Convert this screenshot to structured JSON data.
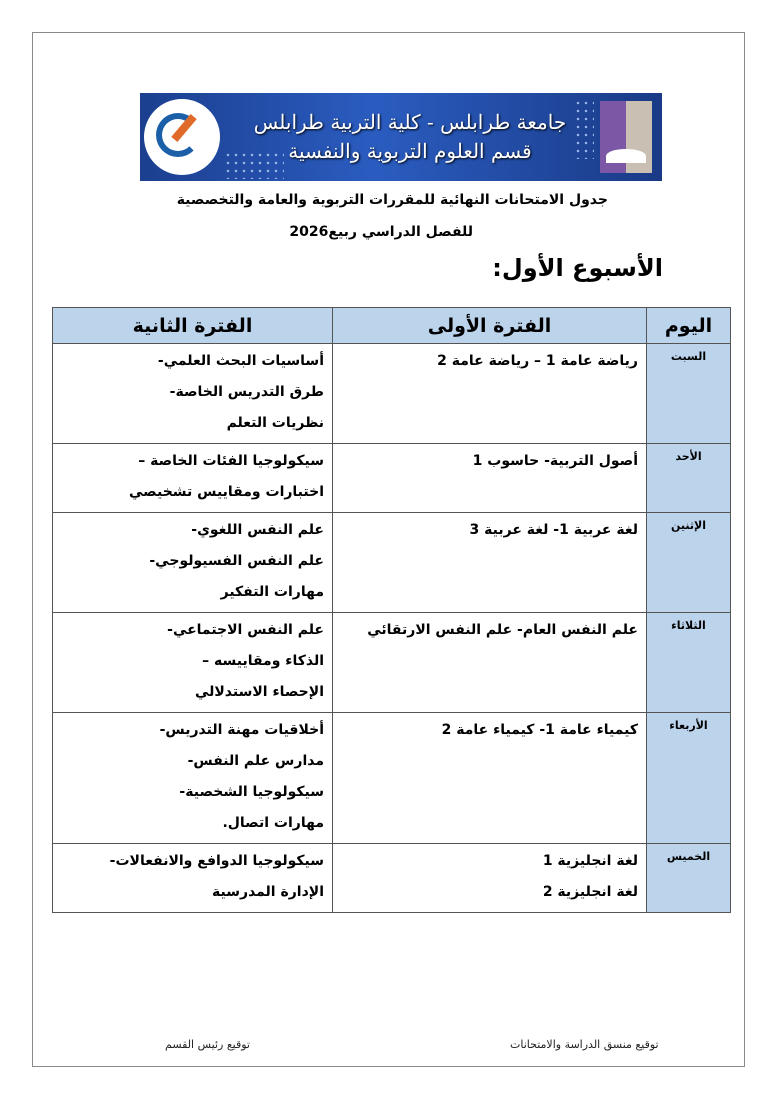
{
  "banner": {
    "line1": "جامعة طرابلس - كلية التربية طرابلس",
    "line2": "قسم العلوم التربوية والنفسية"
  },
  "title_line1": "جدول الامتحانات النهائية للمقررات التربوية والعامة والتخصصية",
  "title_line2": "للفصل الدراسي ربيع2026",
  "week_heading": "الأسبوع الأول:",
  "table": {
    "headers": {
      "day": "اليوم",
      "period1": "الفترة الأولى",
      "period2": "الفترة الثانية"
    },
    "rows": [
      {
        "day": "السبت",
        "period1": [
          "رياضة عامة 1 –    رياضة عامة 2"
        ],
        "period2": [
          "أساسيات البحث العلمي-",
          " طرق التدريس الخاصة-",
          "نظريات التعلم"
        ]
      },
      {
        "day": "الأحد",
        "period1": [
          "أصول التربية-      حاسوب 1"
        ],
        "period2": [
          "سيكولوجيا الفئات الخاصة –",
          "اختبارات ومقاييس تشخيصي"
        ]
      },
      {
        "day": "الإثنين",
        "period1": [
          "لغة عربية 1-     لغة عربية 3"
        ],
        "period2": [
          "علم النفس اللغوي-",
          "علم النفس الفسيولوجي-",
          "مهارات التفكير"
        ]
      },
      {
        "day": "الثلاثاء",
        "period1": [
          "علم النفس العام- علم النفس الارتقائي"
        ],
        "period2": [
          "علم النفس الاجتماعي-",
          "الذكاء ومقاييسه –",
          " الإحصاء الاستدلالي"
        ]
      },
      {
        "day": "الأربعاء",
        "period1": [
          "كيمياء عامة 1-     كيمياء عامة 2"
        ],
        "period2": [
          "أخلاقيات مهنة التدريس-",
          " مدارس علم النفس-",
          " سيكولوجيا الشخصية-",
          " مهارات اتصال."
        ]
      },
      {
        "day": "الخميس",
        "period1": [
          "لغة انجليزية 1",
          "لغة انجليزية 2"
        ],
        "period2": [
          "سيكولوجيا الدوافع والانفعالات-",
          "الإدارة المدرسية"
        ]
      }
    ]
  },
  "signatures": {
    "coordinator": "توقيع منسق الدراسة والامتحانات",
    "head": "توقيع رئيس القسم"
  },
  "colors": {
    "header_bg": "#bcd3ec",
    "banner_bg": "#2a5cc0"
  }
}
